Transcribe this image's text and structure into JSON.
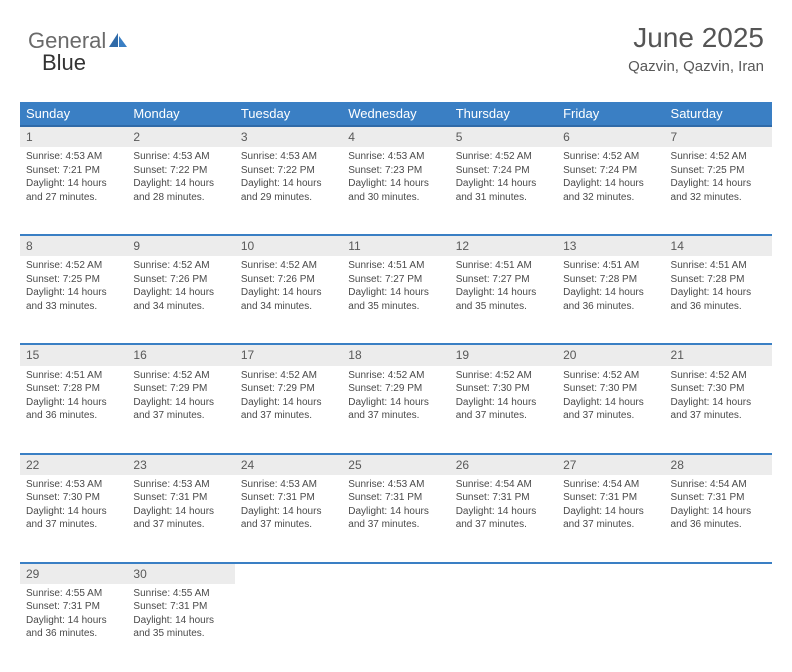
{
  "logo": {
    "text1": "General",
    "text2": "Blue"
  },
  "title": "June 2025",
  "subtitle": "Qazvin, Qazvin, Iran",
  "colors": {
    "header_bg": "#3a7fc4",
    "header_border": "#2f6aa8",
    "daynum_bg": "#ececec",
    "row_sep": "#3a7fc4",
    "text": "#4a4a4a"
  },
  "day_names": [
    "Sunday",
    "Monday",
    "Tuesday",
    "Wednesday",
    "Thursday",
    "Friday",
    "Saturday"
  ],
  "weeks": [
    [
      {
        "n": "1",
        "sr": "4:53 AM",
        "ss": "7:21 PM",
        "dl": "14 hours and 27 minutes."
      },
      {
        "n": "2",
        "sr": "4:53 AM",
        "ss": "7:22 PM",
        "dl": "14 hours and 28 minutes."
      },
      {
        "n": "3",
        "sr": "4:53 AM",
        "ss": "7:22 PM",
        "dl": "14 hours and 29 minutes."
      },
      {
        "n": "4",
        "sr": "4:53 AM",
        "ss": "7:23 PM",
        "dl": "14 hours and 30 minutes."
      },
      {
        "n": "5",
        "sr": "4:52 AM",
        "ss": "7:24 PM",
        "dl": "14 hours and 31 minutes."
      },
      {
        "n": "6",
        "sr": "4:52 AM",
        "ss": "7:24 PM",
        "dl": "14 hours and 32 minutes."
      },
      {
        "n": "7",
        "sr": "4:52 AM",
        "ss": "7:25 PM",
        "dl": "14 hours and 32 minutes."
      }
    ],
    [
      {
        "n": "8",
        "sr": "4:52 AM",
        "ss": "7:25 PM",
        "dl": "14 hours and 33 minutes."
      },
      {
        "n": "9",
        "sr": "4:52 AM",
        "ss": "7:26 PM",
        "dl": "14 hours and 34 minutes."
      },
      {
        "n": "10",
        "sr": "4:52 AM",
        "ss": "7:26 PM",
        "dl": "14 hours and 34 minutes."
      },
      {
        "n": "11",
        "sr": "4:51 AM",
        "ss": "7:27 PM",
        "dl": "14 hours and 35 minutes."
      },
      {
        "n": "12",
        "sr": "4:51 AM",
        "ss": "7:27 PM",
        "dl": "14 hours and 35 minutes."
      },
      {
        "n": "13",
        "sr": "4:51 AM",
        "ss": "7:28 PM",
        "dl": "14 hours and 36 minutes."
      },
      {
        "n": "14",
        "sr": "4:51 AM",
        "ss": "7:28 PM",
        "dl": "14 hours and 36 minutes."
      }
    ],
    [
      {
        "n": "15",
        "sr": "4:51 AM",
        "ss": "7:28 PM",
        "dl": "14 hours and 36 minutes."
      },
      {
        "n": "16",
        "sr": "4:52 AM",
        "ss": "7:29 PM",
        "dl": "14 hours and 37 minutes."
      },
      {
        "n": "17",
        "sr": "4:52 AM",
        "ss": "7:29 PM",
        "dl": "14 hours and 37 minutes."
      },
      {
        "n": "18",
        "sr": "4:52 AM",
        "ss": "7:29 PM",
        "dl": "14 hours and 37 minutes."
      },
      {
        "n": "19",
        "sr": "4:52 AM",
        "ss": "7:30 PM",
        "dl": "14 hours and 37 minutes."
      },
      {
        "n": "20",
        "sr": "4:52 AM",
        "ss": "7:30 PM",
        "dl": "14 hours and 37 minutes."
      },
      {
        "n": "21",
        "sr": "4:52 AM",
        "ss": "7:30 PM",
        "dl": "14 hours and 37 minutes."
      }
    ],
    [
      {
        "n": "22",
        "sr": "4:53 AM",
        "ss": "7:30 PM",
        "dl": "14 hours and 37 minutes."
      },
      {
        "n": "23",
        "sr": "4:53 AM",
        "ss": "7:31 PM",
        "dl": "14 hours and 37 minutes."
      },
      {
        "n": "24",
        "sr": "4:53 AM",
        "ss": "7:31 PM",
        "dl": "14 hours and 37 minutes."
      },
      {
        "n": "25",
        "sr": "4:53 AM",
        "ss": "7:31 PM",
        "dl": "14 hours and 37 minutes."
      },
      {
        "n": "26",
        "sr": "4:54 AM",
        "ss": "7:31 PM",
        "dl": "14 hours and 37 minutes."
      },
      {
        "n": "27",
        "sr": "4:54 AM",
        "ss": "7:31 PM",
        "dl": "14 hours and 37 minutes."
      },
      {
        "n": "28",
        "sr": "4:54 AM",
        "ss": "7:31 PM",
        "dl": "14 hours and 36 minutes."
      }
    ],
    [
      {
        "n": "29",
        "sr": "4:55 AM",
        "ss": "7:31 PM",
        "dl": "14 hours and 36 minutes."
      },
      {
        "n": "30",
        "sr": "4:55 AM",
        "ss": "7:31 PM",
        "dl": "14 hours and 35 minutes."
      },
      null,
      null,
      null,
      null,
      null
    ]
  ],
  "labels": {
    "sunrise": "Sunrise:",
    "sunset": "Sunset:",
    "daylight": "Daylight:"
  }
}
